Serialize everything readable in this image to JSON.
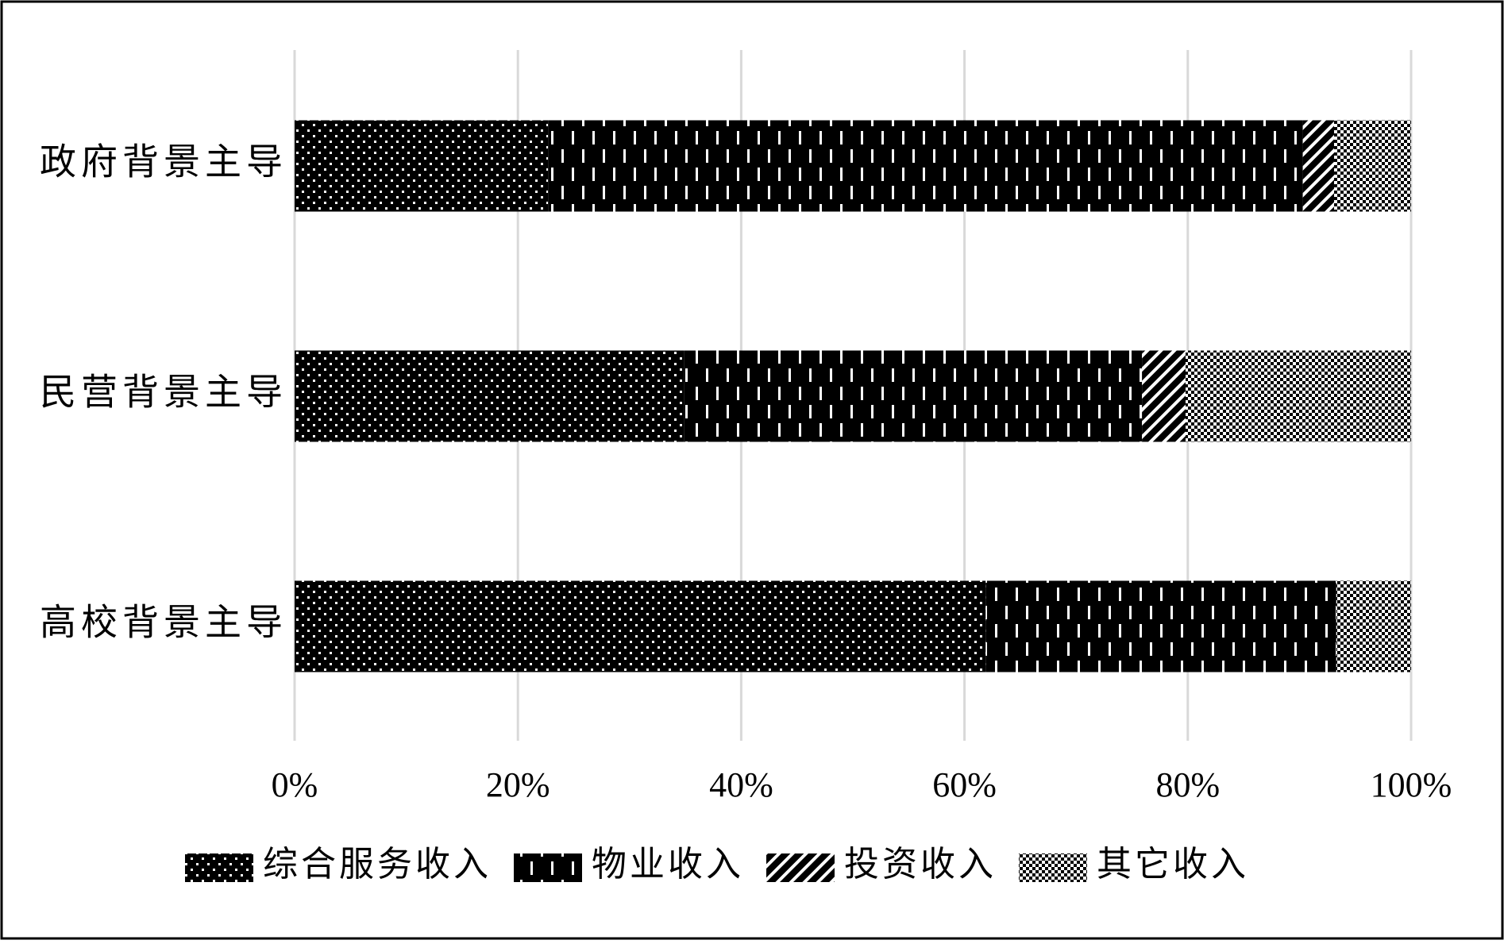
{
  "chart_data": {
    "type": "stacked-bar-horizontal",
    "categories": [
      "政府背景主导",
      "民营背景主导",
      "高校背景主导"
    ],
    "series": [
      {
        "name": "综合服务收入",
        "color": "#000000",
        "values": [
          22.7,
          34.9,
          61.9
        ]
      },
      {
        "name": "物业收入",
        "color": "#000000",
        "values": [
          67.6,
          41.0,
          31.4
        ]
      },
      {
        "name": "投资收入",
        "color": "#000000",
        "values": [
          2.8,
          3.9,
          0
        ]
      },
      {
        "name": "其它收入",
        "color": "#000000",
        "values": [
          6.9,
          20.2,
          6.7
        ]
      }
    ],
    "xlim": [
      0,
      100
    ],
    "xticks": [
      {
        "value": 0,
        "label": "0%"
      },
      {
        "value": 20,
        "label": "20%"
      },
      {
        "value": 40,
        "label": "40%"
      },
      {
        "value": 60,
        "label": "60%"
      },
      {
        "value": 80,
        "label": "80%"
      },
      {
        "value": 100,
        "label": "100%"
      }
    ],
    "grid": true,
    "legend": "bottom"
  }
}
